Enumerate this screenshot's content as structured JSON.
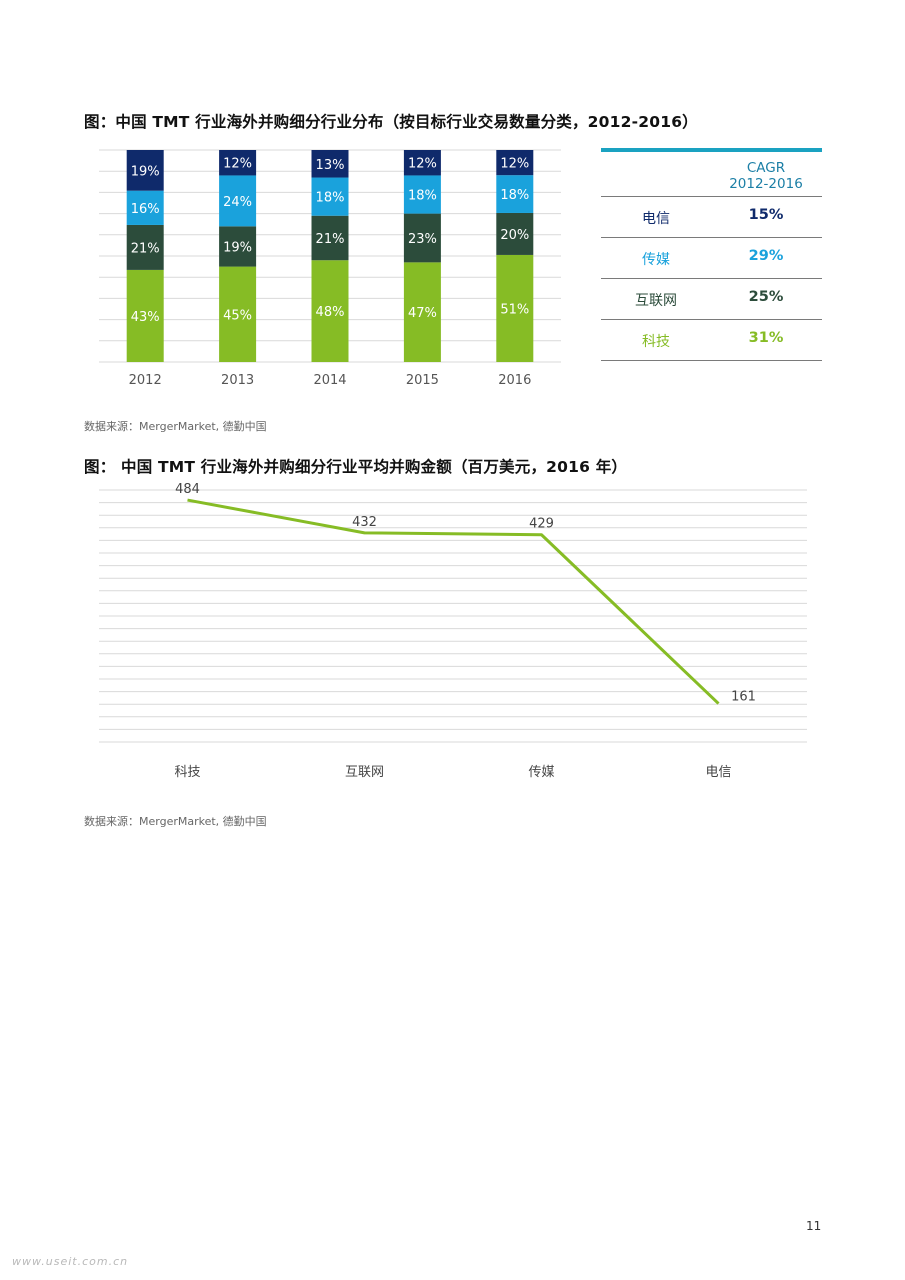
{
  "figure1": {
    "title": "图：中国 TMT 行业海外并购细分行业分布（按目标行业交易数量分类，2012-2016）",
    "source": "数据来源：MergerMarket, 德勤中国"
  },
  "figure2": {
    "title": "图： 中国 TMT 行业海外并购细分行业平均并购金额（百万美元，2016 年）",
    "source": "数据来源：MergerMarket, 德勤中国"
  },
  "cagr_table": {
    "header_line1": "CAGR",
    "header_line2": "2012-2016",
    "rows": [
      {
        "name": "电信",
        "value": "15%"
      },
      {
        "name": "传媒",
        "value": "29%"
      },
      {
        "name": "互联网",
        "value": "25%"
      },
      {
        "name": "科技",
        "value": "31%"
      }
    ]
  },
  "page_number": "11",
  "watermark": "www.useit.com.cn",
  "colors": {
    "科技": "#86bc25",
    "互联网": "#2c4c3b",
    "传媒": "#1aa2dc",
    "电信": "#0f2a6b",
    "cagr_header": "#1c7fa6",
    "cagr_border": "#1aa2c1",
    "line": "#86bc25",
    "grid": "#d9d9d9"
  },
  "chart_data": [
    {
      "type": "bar",
      "stacked": true,
      "percent": true,
      "categories": [
        "2012",
        "2013",
        "2014",
        "2015",
        "2016"
      ],
      "series": [
        {
          "name": "科技",
          "values": [
            43,
            45,
            48,
            47,
            51
          ]
        },
        {
          "name": "互联网",
          "values": [
            21,
            19,
            21,
            23,
            20
          ]
        },
        {
          "name": "传媒",
          "values": [
            16,
            24,
            18,
            18,
            18
          ]
        },
        {
          "name": "电信",
          "values": [
            19,
            12,
            13,
            12,
            12
          ]
        }
      ],
      "data_label_suffix": "%",
      "ylim": [
        0,
        100
      ],
      "grid": true
    },
    {
      "type": "line",
      "categories": [
        "科技",
        "互联网",
        "传媒",
        "电信"
      ],
      "values": [
        484,
        432,
        429,
        161
      ],
      "ylim": [
        100,
        500
      ],
      "grid": true
    }
  ]
}
